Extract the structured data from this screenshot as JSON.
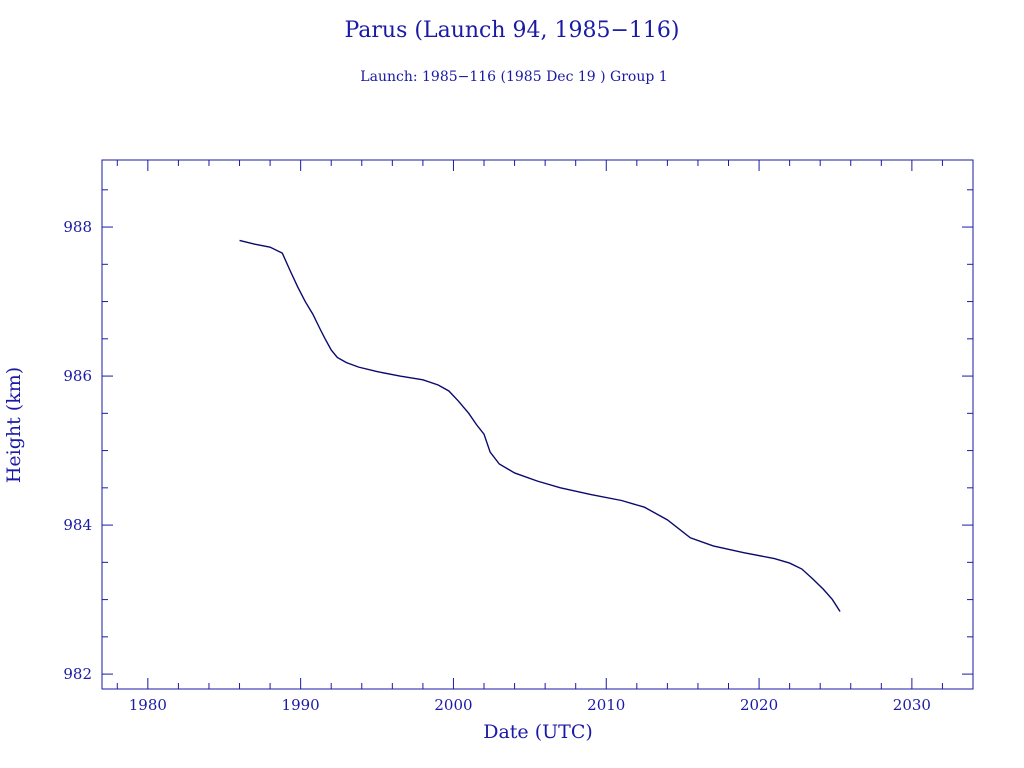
{
  "chart_data": {
    "type": "line",
    "title": "Parus (Launch 94, 1985−116)",
    "subtitle": "Launch: 1985−116  (1985 Dec 19 )  Group 1",
    "xlabel": "Date (UTC)",
    "ylabel": "Height (km)",
    "xlim": [
      1977,
      2034
    ],
    "ylim": [
      981.8,
      988.9
    ],
    "x_major_ticks": [
      1980,
      1990,
      2000,
      2010,
      2020,
      2030
    ],
    "x_tick_labels": [
      "1980",
      "1990",
      "2000",
      "2010",
      "2020",
      "2030"
    ],
    "y_major_ticks": [
      982,
      984,
      986,
      988
    ],
    "y_tick_labels": [
      "982",
      "984",
      "986",
      "988"
    ],
    "grid": false,
    "series": [
      {
        "color": "#0a0a6e",
        "x": [
          1986.0,
          1987.0,
          1988.0,
          1988.8,
          1989.3,
          1989.8,
          1990.3,
          1990.8,
          1991.3,
          1991.6,
          1992.0,
          1992.4,
          1993.0,
          1993.8,
          1995.0,
          1996.5,
          1998.0,
          1999.0,
          1999.7,
          2000.3,
          2001.0,
          2001.5,
          2002.0,
          2002.4,
          2003.0,
          2004.0,
          2005.5,
          2007.0,
          2009.0,
          2011.0,
          2012.5,
          2014.0,
          2015.5,
          2017.0,
          2019.0,
          2021.0,
          2022.0,
          2022.8,
          2023.5,
          2024.2,
          2024.8,
          2025.3
        ],
        "y": [
          987.82,
          987.77,
          987.73,
          987.65,
          987.42,
          987.2,
          987.0,
          986.83,
          986.62,
          986.5,
          986.35,
          986.25,
          986.18,
          986.12,
          986.06,
          986.0,
          985.95,
          985.88,
          985.8,
          985.67,
          985.5,
          985.35,
          985.22,
          984.98,
          984.82,
          984.7,
          984.59,
          984.5,
          984.41,
          984.33,
          984.24,
          984.07,
          983.83,
          983.72,
          983.63,
          983.55,
          983.49,
          983.41,
          983.28,
          983.14,
          983.0,
          982.84
        ]
      }
    ]
  }
}
